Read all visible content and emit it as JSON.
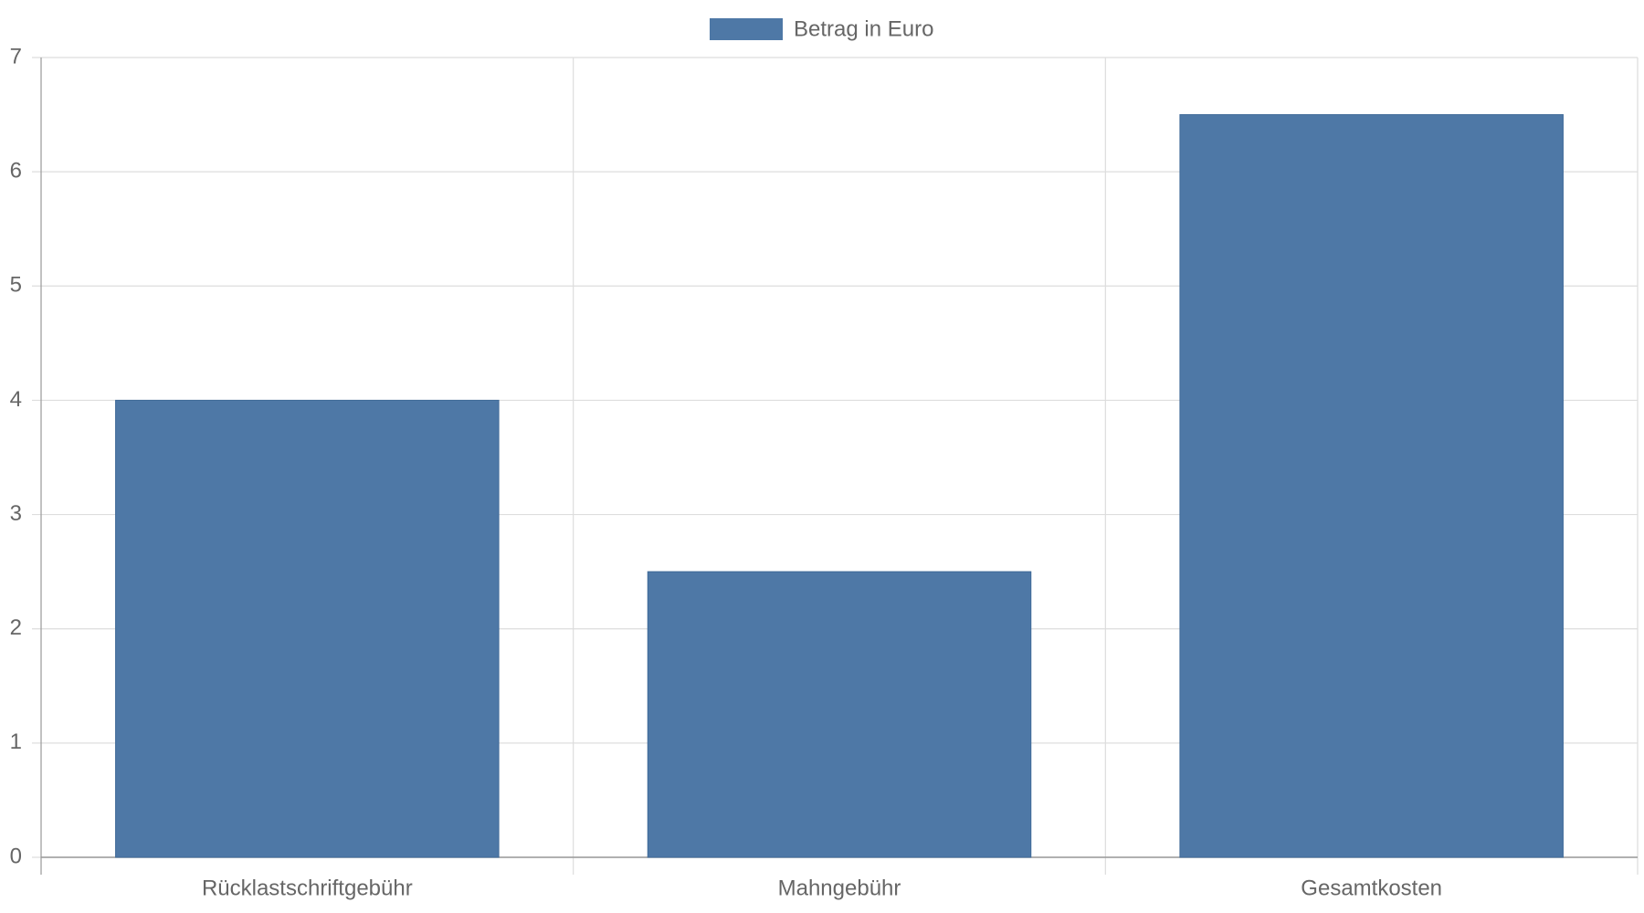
{
  "chart_data": {
    "type": "bar",
    "categories": [
      "Rücklastschriftgebühr",
      "Mahngebühr",
      "Gesamtkosten"
    ],
    "series": [
      {
        "name": "Betrag in Euro",
        "color": "#4e78a6",
        "values": [
          4,
          2.5,
          6.5
        ]
      }
    ],
    "ylim": [
      0,
      7
    ],
    "yticks": [
      0,
      1,
      2,
      3,
      4,
      5,
      6,
      7
    ],
    "grid": true
  }
}
